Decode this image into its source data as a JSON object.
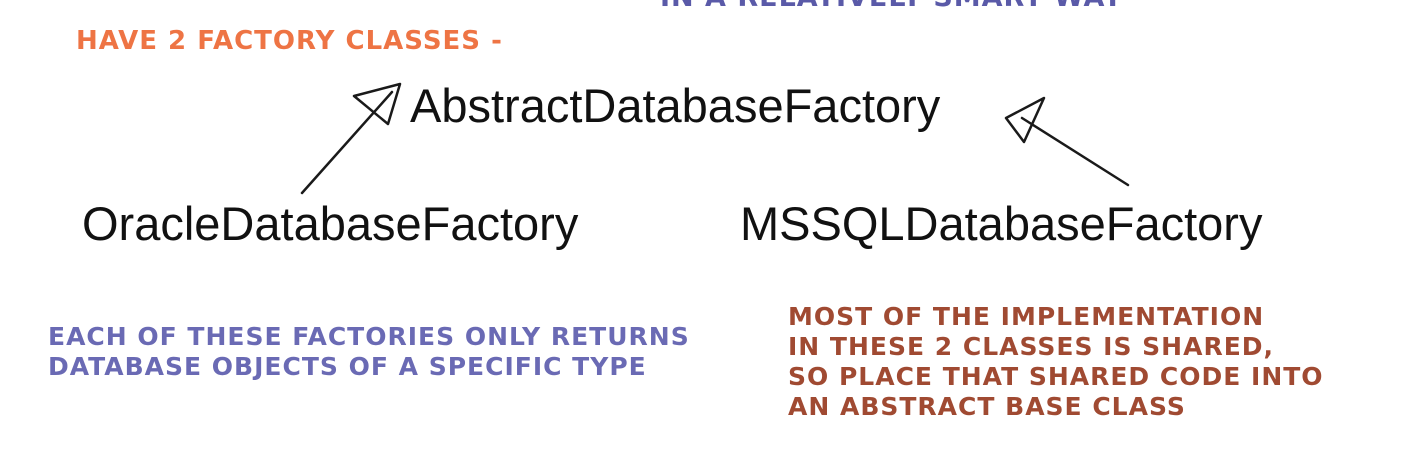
{
  "top_cut_text": "IN A RELATIVELY SMART WAY",
  "heading": "HAVE 2 FACTORY CLASSES -",
  "classes": {
    "abstract": "AbstractDatabaseFactory",
    "oracle": "OracleDatabaseFactory",
    "mssql": "MSSQLDatabaseFactory"
  },
  "notes": {
    "left": [
      "EACH OF THESE FACTORIES ONLY RETURNS",
      "DATABASE OBJECTS OF A SPECIFIC TYPE"
    ],
    "right": [
      "MOST OF THE IMPLEMENTATION",
      "IN THESE 2 CLASSES IS SHARED,",
      "SO PLACE THAT SHARED CODE INTO",
      "AN ABSTRACT BASE CLASS"
    ]
  },
  "colors": {
    "heading": "#ee7444",
    "note_left": "#6a6ab4",
    "note_right": "#a04a32",
    "class_text": "#111111",
    "arrows": "#1a1a1a"
  }
}
